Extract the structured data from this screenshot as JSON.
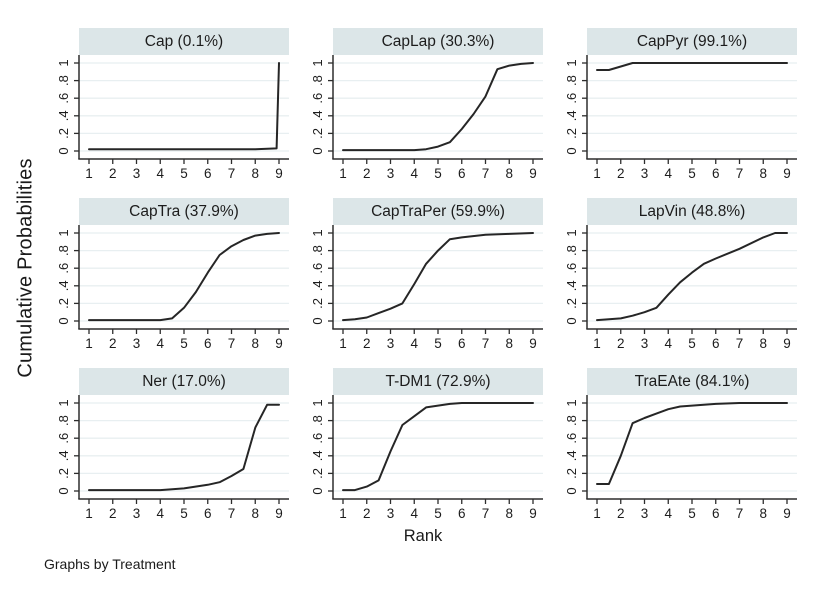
{
  "figure": {
    "ylabel": "Cumulative Probabilities",
    "xlabel": "Rank",
    "footer": "Graphs by Treatment"
  },
  "colors": {
    "background": "#ffffff",
    "title_band": "#dce6e8",
    "grid_line": "#e8eff1",
    "axis": "#2d2d2d",
    "curve": "#262626",
    "text": "#1c1c1c"
  },
  "chart_data": {
    "type": "line",
    "layout": "3x3 small multiples, one panel per treatment",
    "title": "",
    "xlabel": "Rank",
    "ylabel": "Cumulative Probabilities",
    "footer": "Graphs by Treatment",
    "axes": {
      "xlim": [
        1,
        9
      ],
      "ylim": [
        0,
        1
      ],
      "x_ticks": [
        1,
        2,
        3,
        4,
        5,
        6,
        7,
        8,
        9
      ],
      "y_ticks": [
        0,
        0.2,
        0.4,
        0.6,
        0.8,
        1
      ],
      "y_tick_labels": [
        "0",
        ".2",
        ".4",
        ".6",
        ".8",
        "1"
      ],
      "grid": "horizontal only"
    },
    "panels": [
      {
        "title": "Cap (0.1%)",
        "treatment": "Cap",
        "pct_label": "0.1%",
        "points": [
          [
            1,
            0.02
          ],
          [
            4,
            0.02
          ],
          [
            8,
            0.02
          ],
          [
            8.9,
            0.03
          ],
          [
            9,
            1.0
          ]
        ]
      },
      {
        "title": "CapLap (30.3%)",
        "treatment": "CapLap",
        "pct_label": "30.3%",
        "points": [
          [
            1,
            0.01
          ],
          [
            4,
            0.01
          ],
          [
            4.5,
            0.02
          ],
          [
            5,
            0.05
          ],
          [
            5.5,
            0.1
          ],
          [
            6,
            0.25
          ],
          [
            6.5,
            0.42
          ],
          [
            7,
            0.62
          ],
          [
            7.5,
            0.93
          ],
          [
            8,
            0.97
          ],
          [
            8.5,
            0.99
          ],
          [
            9,
            1.0
          ]
        ]
      },
      {
        "title": "CapPyr (99.1%)",
        "treatment": "CapPyr",
        "pct_label": "99.1%",
        "points": [
          [
            1,
            0.92
          ],
          [
            1.5,
            0.92
          ],
          [
            2,
            0.96
          ],
          [
            2.5,
            1.0
          ],
          [
            9,
            1.0
          ]
        ]
      },
      {
        "title": "CapTra (37.9%)",
        "treatment": "CapTra",
        "pct_label": "37.9%",
        "points": [
          [
            1,
            0.01
          ],
          [
            4,
            0.01
          ],
          [
            4.5,
            0.03
          ],
          [
            5,
            0.15
          ],
          [
            5.5,
            0.33
          ],
          [
            6,
            0.55
          ],
          [
            6.5,
            0.75
          ],
          [
            7,
            0.85
          ],
          [
            7.5,
            0.92
          ],
          [
            8,
            0.97
          ],
          [
            8.5,
            0.99
          ],
          [
            9,
            1.0
          ]
        ]
      },
      {
        "title": "CapTraPer (59.9%)",
        "treatment": "CapTraPer",
        "pct_label": "59.9%",
        "points": [
          [
            1,
            0.01
          ],
          [
            1.5,
            0.02
          ],
          [
            2,
            0.04
          ],
          [
            2.5,
            0.09
          ],
          [
            3,
            0.14
          ],
          [
            3.5,
            0.2
          ],
          [
            4,
            0.42
          ],
          [
            4.5,
            0.65
          ],
          [
            5,
            0.8
          ],
          [
            5.5,
            0.93
          ],
          [
            6,
            0.95
          ],
          [
            7,
            0.98
          ],
          [
            8,
            0.99
          ],
          [
            9,
            1.0
          ]
        ]
      },
      {
        "title": "LapVin (48.8%)",
        "treatment": "LapVin",
        "pct_label": "48.8%",
        "points": [
          [
            1,
            0.01
          ],
          [
            2,
            0.03
          ],
          [
            2.5,
            0.06
          ],
          [
            3,
            0.1
          ],
          [
            3.5,
            0.15
          ],
          [
            4,
            0.3
          ],
          [
            4.5,
            0.44
          ],
          [
            5,
            0.55
          ],
          [
            5.5,
            0.65
          ],
          [
            6,
            0.71
          ],
          [
            7,
            0.82
          ],
          [
            8,
            0.95
          ],
          [
            8.5,
            1.0
          ],
          [
            9,
            1.0
          ]
        ]
      },
      {
        "title": "Ner (17.0%)",
        "treatment": "Ner",
        "pct_label": "17.0%",
        "points": [
          [
            1,
            0.01
          ],
          [
            4,
            0.01
          ],
          [
            5,
            0.03
          ],
          [
            6,
            0.07
          ],
          [
            6.5,
            0.1
          ],
          [
            7,
            0.17
          ],
          [
            7.5,
            0.25
          ],
          [
            8,
            0.72
          ],
          [
            8.5,
            0.98
          ],
          [
            9,
            0.98
          ]
        ]
      },
      {
        "title": "T-DM1 (72.9%)",
        "treatment": "T-DM1",
        "pct_label": "72.9%",
        "points": [
          [
            1,
            0.01
          ],
          [
            1.5,
            0.01
          ],
          [
            2,
            0.05
          ],
          [
            2.5,
            0.12
          ],
          [
            3,
            0.45
          ],
          [
            3.5,
            0.75
          ],
          [
            4,
            0.85
          ],
          [
            4.5,
            0.95
          ],
          [
            5,
            0.97
          ],
          [
            5.5,
            0.99
          ],
          [
            6,
            1.0
          ],
          [
            9,
            1.0
          ]
        ]
      },
      {
        "title": "TraEAte (84.1%)",
        "treatment": "TraEAte",
        "pct_label": "84.1%",
        "points": [
          [
            1,
            0.08
          ],
          [
            1.5,
            0.08
          ],
          [
            2,
            0.4
          ],
          [
            2.5,
            0.77
          ],
          [
            3,
            0.83
          ],
          [
            3.5,
            0.88
          ],
          [
            4,
            0.93
          ],
          [
            4.5,
            0.96
          ],
          [
            5,
            0.97
          ],
          [
            6,
            0.99
          ],
          [
            7,
            1.0
          ],
          [
            9,
            1.0
          ]
        ]
      }
    ]
  }
}
